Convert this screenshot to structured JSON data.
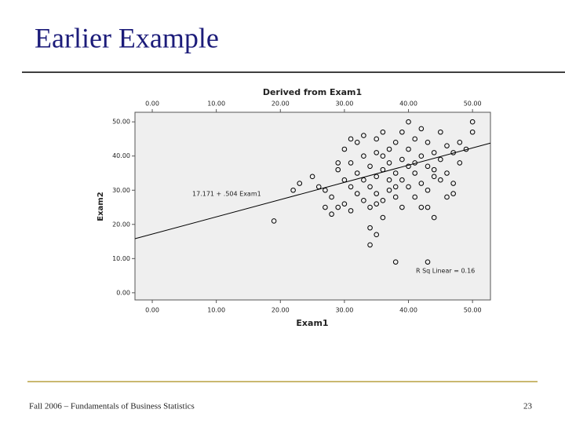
{
  "slide": {
    "title": "Earlier Example",
    "footer": "Fall 2006 – Fundamentals of Business Statistics",
    "page_number": "23"
  },
  "chart_data": {
    "type": "scatter",
    "title": "Derived from Exam1",
    "x_label": "Exam1",
    "y_label": "Exam2",
    "x": [
      19,
      22,
      23,
      25,
      26,
      27,
      27,
      28,
      28,
      29,
      29,
      30,
      30,
      30,
      31,
      31,
      31,
      32,
      32,
      32,
      33,
      33,
      33,
      33,
      34,
      34,
      34,
      34,
      35,
      35,
      35,
      35,
      35,
      36,
      36,
      36,
      36,
      37,
      37,
      37,
      37,
      38,
      38,
      38,
      38,
      39,
      39,
      39,
      39,
      40,
      40,
      40,
      40,
      41,
      41,
      41,
      42,
      42,
      42,
      42,
      43,
      43,
      43,
      43,
      44,
      44,
      44,
      45,
      45,
      45,
      46,
      46,
      46,
      47,
      47,
      48,
      48,
      49,
      50,
      50,
      34,
      35,
      38,
      43,
      31,
      29,
      36,
      41,
      44,
      47
    ],
    "values": [
      21,
      30,
      32,
      34,
      31,
      30,
      25,
      28,
      23,
      25,
      38,
      42,
      33,
      26,
      38,
      24,
      31,
      29,
      35,
      44,
      27,
      33,
      40,
      46,
      19,
      37,
      31,
      25,
      17,
      41,
      34,
      29,
      45,
      36,
      27,
      22,
      47,
      33,
      42,
      38,
      30,
      9,
      35,
      44,
      28,
      39,
      25,
      33,
      47,
      50,
      31,
      37,
      42,
      35,
      28,
      45,
      40,
      32,
      25,
      48,
      9,
      37,
      30,
      44,
      36,
      41,
      22,
      39,
      33,
      47,
      35,
      43,
      28,
      41,
      32,
      44,
      38,
      42,
      50,
      47,
      14,
      26,
      31,
      25,
      45,
      36,
      40,
      38,
      34,
      29
    ],
    "color": "#000000",
    "xlim": [
      -2.7,
      52.8
    ],
    "ylim": [
      -2.1,
      52.8
    ],
    "xticks": [
      {
        "value": 0,
        "label": "0.00"
      },
      {
        "value": 10,
        "label": "10.00"
      },
      {
        "value": 20,
        "label": "20.00"
      },
      {
        "value": 30,
        "label": "30.00"
      },
      {
        "value": 40,
        "label": "40.00"
      },
      {
        "value": 50,
        "label": "50.00"
      }
    ],
    "yticks": [
      {
        "value": 0,
        "label": "0.00"
      },
      {
        "value": 10,
        "label": "10.00"
      },
      {
        "value": 20,
        "label": "20.00"
      },
      {
        "value": 30,
        "label": "30.00"
      },
      {
        "value": 40,
        "label": "40.00"
      },
      {
        "value": 50,
        "label": "50.00"
      }
    ],
    "fit": {
      "intercept": 17.171,
      "slope": 0.504,
      "label": "17.171 + .504 Exam1"
    },
    "r_squared_label": "R Sq Linear = 0.16"
  }
}
